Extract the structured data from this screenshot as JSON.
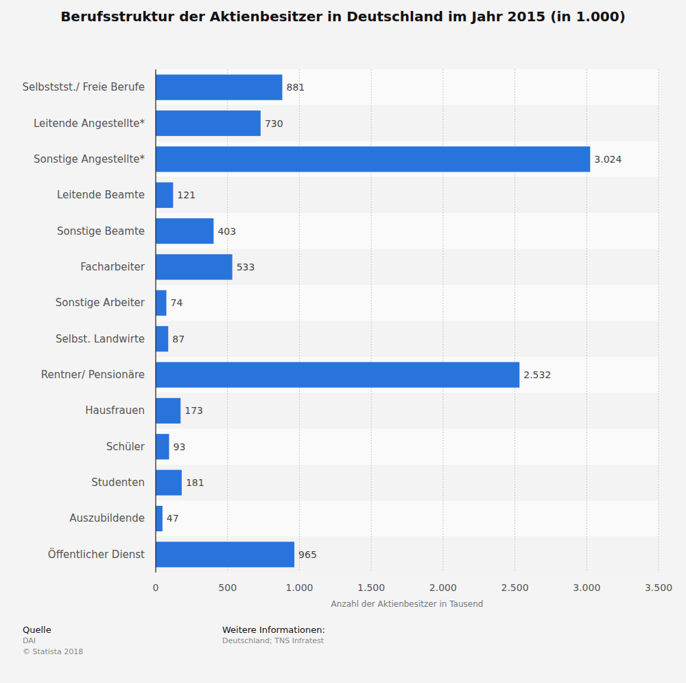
{
  "chart_data": {
    "type": "bar",
    "orientation": "horizontal",
    "title": "Berufsstruktur der Aktienbesitzer in Deutschland im Jahr 2015 (in 1.000)",
    "xlabel": "Anzahl der Aktienbesitzer in Tausend",
    "categories": [
      "Selbststst./ Freie Berufe",
      "Leitende Angestellte*",
      "Sonstige Angestellte*",
      "Leitende Beamte",
      "Sonstige Beamte",
      "Facharbeiter",
      "Sonstige Arbeiter",
      "Selbst. Landwirte",
      "Rentner/ Pensionäre",
      "Hausfrauen",
      "Schüler",
      "Studenten",
      "Auszubildende",
      "Öffentlicher Dienst"
    ],
    "values": [
      881,
      730,
      3024,
      121,
      403,
      533,
      74,
      87,
      2532,
      173,
      93,
      181,
      47,
      965
    ],
    "value_labels": [
      "881",
      "730",
      "3.024",
      "121",
      "403",
      "533",
      "74",
      "87",
      "2.532",
      "173",
      "93",
      "181",
      "47",
      "965"
    ],
    "color": "#2874dc",
    "xlim": [
      0,
      3500
    ],
    "xticks": [
      0,
      500,
      {
        "value": 1000,
        "label": "1.000"
      },
      {
        "value": 1500,
        "label": "1.500"
      },
      {
        "value": 2000,
        "label": "2.000"
      },
      {
        "value": 2500,
        "label": "2.500"
      },
      {
        "value": 3000,
        "label": "3.000"
      },
      {
        "value": 3500,
        "label": "3.500"
      }
    ],
    "grid": true,
    "data_labels": true,
    "source_title": "Quelle",
    "source": "DAI",
    "copyright": "© Statista 2018",
    "info_title": "Weitere Informationen:",
    "info": "Deutschland; TNS Infratest"
  }
}
